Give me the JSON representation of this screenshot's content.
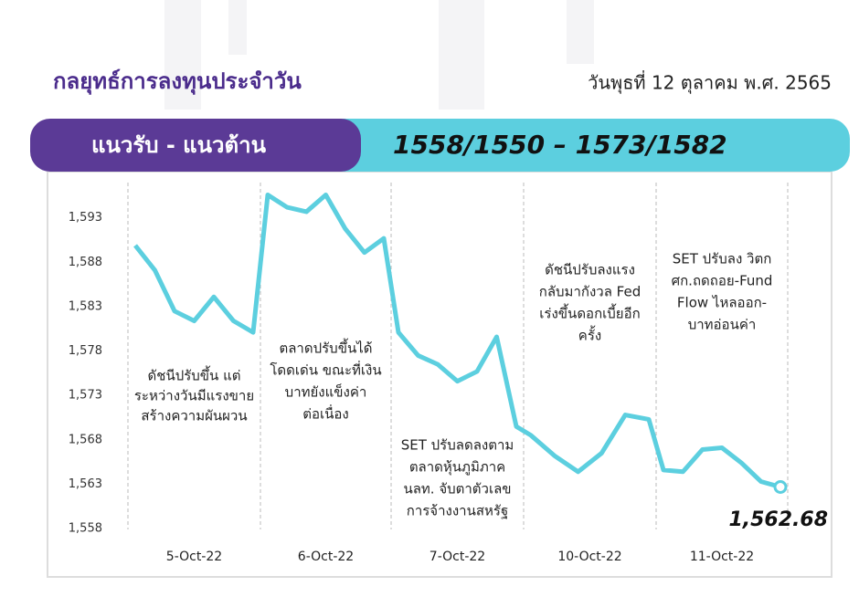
{
  "header": {
    "title": "กลยุทธ์การลงทุนประจำวัน",
    "date": "วันพุธที่ 12 ตุลาคม พ.ศ. 2565",
    "band_label": "แนวรับ - แนวต้าน",
    "band_value": "1558/1550 –  1573/1582"
  },
  "chart_data": {
    "type": "line",
    "color": "#5ccfdf",
    "categories": [
      "5-Oct-22",
      "6-Oct-22",
      "7-Oct-22",
      "10-Oct-22",
      "11-Oct-22"
    ],
    "values": [
      [
        1589.9,
        1587.1,
        1582.5,
        1581.4,
        1584.1,
        1581.4,
        1580.1
      ],
      [
        1595.6,
        1594.2,
        1593.7,
        1595.6,
        1591.8,
        1589.1,
        1590.7
      ],
      [
        1580.1,
        1577.5,
        1576.5,
        1574.6,
        1575.7,
        1579.6,
        1569.5
      ],
      [
        1568.5,
        1566.2,
        1564.4,
        1566.5,
        1570.8,
        1570.3
      ],
      [
        1564.6,
        1564.4,
        1566.9,
        1567.1,
        1565.4,
        1563.3,
        1562.68
      ]
    ],
    "last_value_label": "1,562.68",
    "ylim": [
      1558,
      1597.5
    ],
    "yticks": [
      {
        "value": 1558,
        "label": "1,558"
      },
      {
        "value": 1563,
        "label": "1,563"
      },
      {
        "value": 1568,
        "label": "1,568"
      },
      {
        "value": 1573,
        "label": "1,573"
      },
      {
        "value": 1578,
        "label": "1,578"
      },
      {
        "value": 1583,
        "label": "1,583"
      },
      {
        "value": 1588,
        "label": "1,588"
      },
      {
        "value": 1593,
        "label": "1,593"
      }
    ],
    "annotations": [
      [
        "ดัชนีปรับขึ้น แต่",
        "ระหว่างวันมีแรงขาย",
        "สร้างความผันผวน"
      ],
      [
        "ตลาดปรับขึ้นได้",
        "โดดเด่น ขณะที่เงิน",
        "บาทยังแข็งค่า",
        "ต่อเนื่อง"
      ],
      [
        "SET ปรับลดลงตาม",
        "ตลาดหุ้นภูมิภาค",
        "นลท. จับตาตัวเลข",
        "การจ้างงานสหรัฐ"
      ],
      [
        "ดัชนีปรับลงแรง",
        "กลับมากังวล Fed",
        "เร่งขึ้นดอกเบี้ยอีก",
        "ครั้ง"
      ],
      [
        "SET ปรับลง วิตก",
        "ศก.ถดถอย-Fund",
        "Flow ไหลออก-",
        "บาทอ่อนค่า"
      ]
    ]
  }
}
